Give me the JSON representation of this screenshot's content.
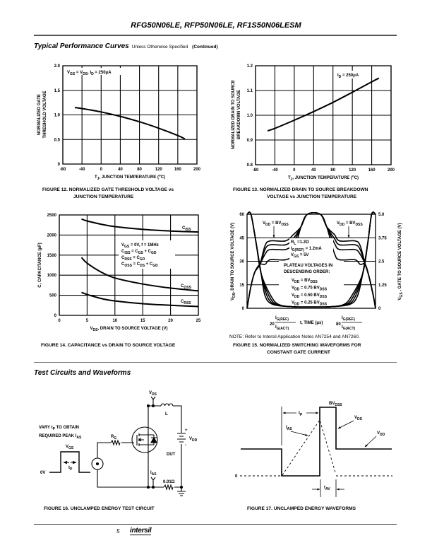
{
  "header": {
    "title": "RFG50N06LE, RFP50N06LE, RF1S50N06LESM"
  },
  "section1": {
    "title": "Typical Performance Curves",
    "subtitle": "Unless Otherwise Specified",
    "continued": "(Continued)"
  },
  "chart_data": [
    {
      "type": "line",
      "caption": [
        "FIGURE 12.  NORMALIZED GATE THRESHOLD VOLTAGE vs",
        "JUNCTION TEMPERATURE"
      ],
      "ylabel": [
        "NORMALIZED GATE",
        "THRESHOLD VOLTAGE"
      ],
      "xlabel": "T{J}, JUNCTION TEMPERATURE (^{o}C)",
      "annotation": "V{GS} = V{DS}, I{D} = 250μA",
      "xlim": [
        -80,
        200
      ],
      "ylim": [
        0,
        2
      ],
      "xticks": [
        "-80",
        "-40",
        "0",
        "40",
        "80",
        "120",
        "160",
        "200"
      ],
      "yticks": [
        "0",
        "0.5",
        "1.0",
        "1.5",
        "2.0"
      ],
      "grid": true,
      "series": [
        {
          "name": "VGS(th) normalized",
          "x": [
            -55,
            -40,
            0,
            40,
            80,
            120,
            160,
            175
          ],
          "y": [
            1.15,
            1.13,
            1.06,
            0.97,
            0.86,
            0.73,
            0.58,
            0.51
          ]
        }
      ]
    },
    {
      "type": "line",
      "caption": [
        "FIGURE 13.  NORMALIZED DRAIN TO SOURCE BREAKDOWN",
        "VOLTAGE vs JUNCTION TEMPERATURE"
      ],
      "ylabel": [
        "NORMALIZED DRAIN TO SOURCE",
        "BREAKDOWN VOLTAGE"
      ],
      "xlabel": "T{J}, JUNCTION TEMPERATURE (^{o}C)",
      "annotation": "I{D} = 250μA",
      "xlim": [
        -80,
        200
      ],
      "ylim": [
        0.8,
        1.2
      ],
      "xticks": [
        "-80",
        "-40",
        "0",
        "40",
        "80",
        "120",
        "160",
        "200"
      ],
      "yticks": [
        "0.8",
        "0.9",
        "1.0",
        "1.1",
        "1.2"
      ],
      "grid": true,
      "series": [
        {
          "name": "BVDSS normalized",
          "x": [
            -55,
            -40,
            0,
            40,
            80,
            120,
            160,
            175
          ],
          "y": [
            0.937,
            0.947,
            0.98,
            1.015,
            1.052,
            1.093,
            1.135,
            1.15
          ]
        }
      ]
    },
    {
      "type": "line",
      "caption": [
        "FIGURE 14.  CAPACITANCE vs DRAIN TO SOURCE VOLTAGE"
      ],
      "ylabel": [
        "C, CAPACITANCE (pF)"
      ],
      "xlabel": "V{DS}, DRAIN TO SOURCE VOLTAGE (V)",
      "annotation_lines": [
        "V{GS} = 0V, f = 1MHz",
        "C{ISS} = C{GS} + C{GD}",
        "C{RSS} = C{GD}",
        "C{OSS} = C{DS} + C{GD}"
      ],
      "xlim": [
        0,
        25
      ],
      "ylim": [
        0,
        2500
      ],
      "xticks": [
        "0",
        "5",
        "10",
        "15",
        "20",
        "25"
      ],
      "yticks": [
        "0",
        "500",
        "1000",
        "1500",
        "2000",
        "2500"
      ],
      "grid": true,
      "series": [
        {
          "name": "C{ISS}",
          "x": [
            4,
            5,
            7.5,
            10,
            15,
            20,
            25
          ],
          "y": [
            2400,
            2350,
            2270,
            2210,
            2140,
            2100,
            2075
          ]
        },
        {
          "name": "C{OSS}",
          "x": [
            4,
            5,
            7.5,
            10,
            15,
            20,
            25
          ],
          "y": [
            1440,
            1300,
            1080,
            930,
            780,
            680,
            610
          ]
        },
        {
          "name": "C{RSS}",
          "x": [
            4,
            5,
            7.5,
            10,
            15,
            20,
            25
          ],
          "y": [
            570,
            520,
            420,
            360,
            290,
            250,
            220
          ]
        }
      ]
    },
    {
      "type": "line",
      "caption": [
        "FIGURE 15.  NORMALIZED SWITCHING WAVEFORMS FOR",
        "CONSTANT GATE CURRENT"
      ],
      "note": "NOTE:  Refer to Intersil Application Notes AN7254 and AN7260.",
      "ylabel": "V{DS}, DRAIN TO SOURCE VOLTAGE (V)",
      "y2label": "V{GS} , GATE TO SOURCE VOLTAGE (V)",
      "xlabel": "t, TIME (μs)",
      "xmarks": [
        {
          "coef": "20",
          "num": "I{G(REF)}",
          "den": "I{G(ACT)}"
        },
        {
          "coef": "80",
          "num": "I{G(REF)}",
          "den": "I{G(ACT)}"
        }
      ],
      "ylim": [
        0,
        60
      ],
      "y2lim": [
        0,
        5
      ],
      "yticks": [
        "0",
        "15",
        "30",
        "45",
        "60"
      ],
      "y2ticks": [
        "0",
        "1.25",
        "2.5",
        "3.75",
        "5.0"
      ],
      "vdd_label": "V{DD} = BV{DSS}",
      "conditions": [
        "R{L} =1.2Ω",
        "I{G(REF)} = 1.2mA",
        "V{GS} = 5V"
      ],
      "plateau_title": [
        "PLATEAU VOLTAGES IN",
        "DESCENDING ORDER:"
      ],
      "plateau_list": [
        "V{DD} = BV{DSS}",
        "V{DD} = 0.75 BV{DSS}",
        "V{DD} = 0.50 BV{DSS}",
        "V{DD} = 0.25 BV{DSS}"
      ],
      "plateau_vgs_scaled": [
        43,
        40.5,
        37.5,
        31
      ]
    }
  ],
  "section2": {
    "title": "Test Circuits and Waveforms"
  },
  "fig16": {
    "caption": "FIGURE 16.  UNCLAMPED ENERGY TEST CIRCUIT",
    "vary": [
      "VARY t{P} TO OBTAIN",
      "REQUIRED PEAK I{AS}"
    ],
    "vgs": "V{GS}",
    "zero": "0V",
    "tp": "t{P}",
    "rg": "R{G}",
    "vds": "V{DS}",
    "l": "L",
    "vdd": "V{DD}",
    "plus": "+",
    "minus": "-",
    "dut": "DUT",
    "ias": "I{AS}",
    "rsense": "0.01Ω"
  },
  "fig17": {
    "caption": "FIGURE 17.  UNCLAMPED ENERGY WAVEFORMS",
    "bvdss": "BV{DSS}",
    "tp": "t{P}",
    "ias": "I{AS}",
    "vds": "V{DS}",
    "vdd": "V{DD}",
    "zero": "0",
    "tav": "t{AV}"
  },
  "footer": {
    "page": "5",
    "logo": "intersil"
  }
}
